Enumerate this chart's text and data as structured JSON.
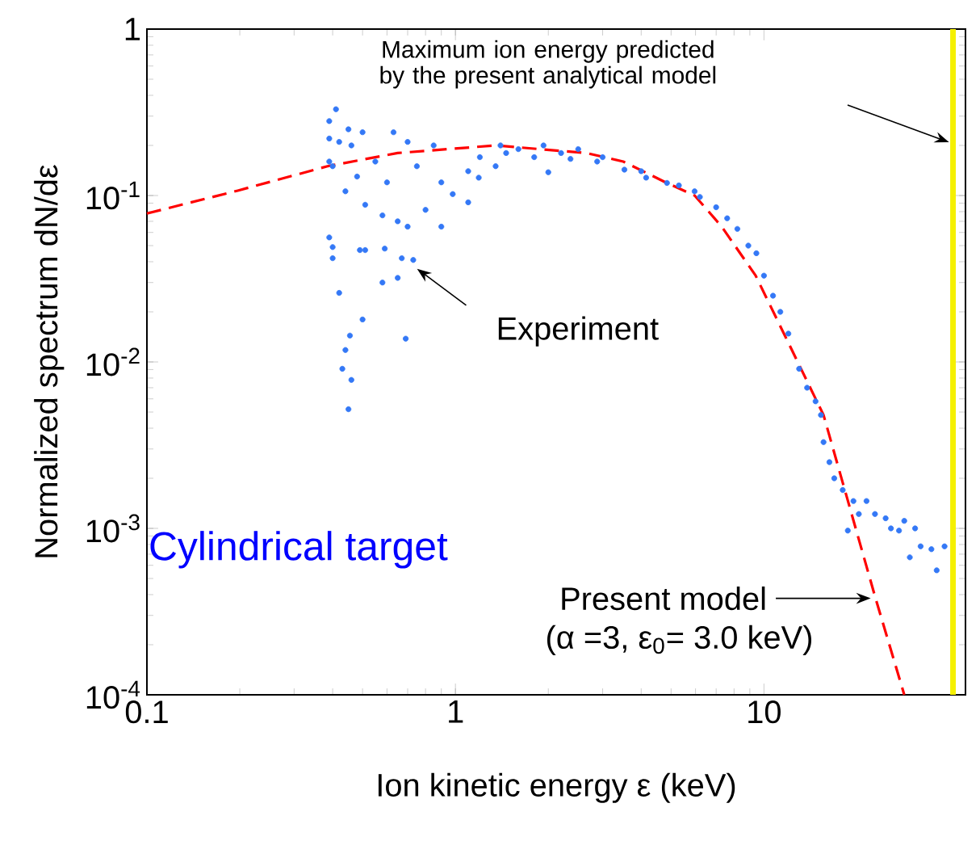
{
  "chart_data": {
    "type": "scatter",
    "xlabel": "Ion kinetic energy ε (keV)",
    "ylabel": "Normalized spectrum dN/dε",
    "log": "xy",
    "xlim": [
      0.1,
      45
    ],
    "ylim": [
      0.0001,
      1
    ],
    "xticks": [
      0.1,
      1,
      10
    ],
    "yticks": [
      {
        "value": 0.0001,
        "label": "10$^{-4}$"
      },
      {
        "value": 0.001,
        "label": "10$^{-3}$"
      },
      {
        "value": 0.01,
        "label": "10$^{-2}$"
      },
      {
        "value": 0.1,
        "label": "10$^{-1}$"
      },
      1
    ],
    "grid": false,
    "series": [
      {
        "marker": "circle",
        "color": "#3478f6",
        "x": [
          0.41,
          0.39,
          0.45,
          0.5,
          0.63,
          0.39,
          0.42,
          0.39,
          0.4,
          0.44,
          0.39,
          0.4,
          0.4,
          0.49,
          0.51,
          0.59,
          0.67,
          0.73,
          0.65,
          0.58,
          0.42,
          0.5,
          0.69,
          0.455,
          0.44,
          0.43,
          0.46,
          0.45,
          0.51,
          0.58,
          0.65,
          0.7,
          0.8,
          0.9,
          0.98,
          1.1,
          1.19,
          1.35,
          1.46,
          1.93,
          2.0,
          2.36,
          2.88,
          3.53,
          4.15,
          4.85,
          5.96,
          6.2,
          7.0,
          7.6,
          8.2,
          8.9,
          9.45,
          10.0,
          10.7,
          11.3,
          12.0,
          13.0,
          13.8,
          14.7,
          15.3,
          15.6,
          16.3,
          16.9,
          18.0,
          18.7,
          19.5,
          20.3,
          21.5,
          22.9,
          24.8,
          25.8,
          27.4,
          28.5,
          30.9,
          32.2,
          34.9,
          29.7,
          36.3,
          38.5,
          1.2,
          1.6,
          1.8,
          2.2,
          2.5,
          1.1,
          0.9,
          0.75,
          0.6,
          0.55,
          0.48,
          0.46,
          3.0,
          4.0,
          5.3,
          1.4,
          0.7,
          0.85
        ],
        "values": [
          0.33,
          0.28,
          0.25,
          0.24,
          0.24,
          0.22,
          0.21,
          0.16,
          0.15,
          0.106,
          0.056,
          0.049,
          0.042,
          0.047,
          0.047,
          0.048,
          0.042,
          0.041,
          0.032,
          0.03,
          0.026,
          0.018,
          0.0138,
          0.0144,
          0.0118,
          0.0091,
          0.0078,
          0.0052,
          0.088,
          0.076,
          0.07,
          0.065,
          0.082,
          0.065,
          0.102,
          0.091,
          0.128,
          0.15,
          0.18,
          0.2,
          0.138,
          0.166,
          0.16,
          0.143,
          0.128,
          0.119,
          0.106,
          0.098,
          0.085,
          0.073,
          0.063,
          0.05,
          0.045,
          0.033,
          0.025,
          0.02,
          0.0148,
          0.0091,
          0.007,
          0.0058,
          0.0048,
          0.0033,
          0.0025,
          0.002,
          0.0017,
          0.00097,
          0.00146,
          0.00122,
          0.00146,
          0.00122,
          0.00115,
          0.001,
          0.00097,
          0.00111,
          0.001,
          0.00078,
          0.00075,
          0.00067,
          0.00056,
          0.00078,
          0.17,
          0.19,
          0.17,
          0.18,
          0.19,
          0.14,
          0.12,
          0.15,
          0.12,
          0.16,
          0.13,
          0.2,
          0.17,
          0.14,
          0.115,
          0.2,
          0.21,
          0.2
        ]
      },
      {
        "type": "line",
        "marker": "none",
        "line_style": "dashed",
        "color": "#ff0000",
        "x": [
          0.1,
          0.197,
          0.385,
          0.65,
          1.35,
          2.66,
          3.5,
          4.8,
          5.96,
          7.3,
          9.4,
          15.6,
          23,
          28.5
        ],
        "values": [
          0.078,
          0.107,
          0.15,
          0.18,
          0.2,
          0.18,
          0.16,
          0.12,
          0.1,
          0.065,
          0.033,
          0.0048,
          0.00038,
          0.0001
        ]
      }
    ],
    "ref_lines": [
      {
        "axis": "x",
        "value": 41,
        "color": "#f5f000"
      }
    ],
    "annotations": [
      "Maximum ion energy predicted by the present analytical model",
      "Experiment",
      {
        "text": "Present model",
        "x": 23,
        "y": 0.00038
      },
      "(α =3, ε$_{0}$= 3.0 keV)",
      "Cylindrical target"
    ]
  }
}
